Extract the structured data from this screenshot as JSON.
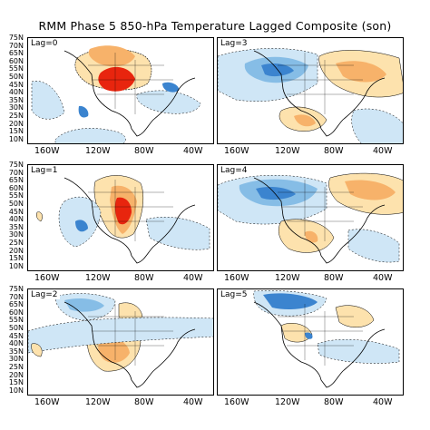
{
  "title": "RMM Phase 5 850-hPa Temperature Lagged Composite (son)",
  "lat_labels": [
    "75N",
    "70N",
    "65N",
    "60N",
    "55N",
    "50N",
    "45N",
    "40N",
    "35N",
    "30N",
    "25N",
    "20N",
    "15N",
    "10N"
  ],
  "lon_labels": [
    "160W",
    "120W",
    "80W",
    "40W"
  ],
  "colors": {
    "strong_warm": "#e8250e",
    "warm": "#f7b26a",
    "light_warm": "#fde2ad",
    "light_cool": "#cfe6f6",
    "cool": "#86bde6",
    "strong_cool": "#3b84cf",
    "land_line": "#000000",
    "contour": "#000000"
  },
  "panels": [
    {
      "id": "lag0",
      "label": "Lag=0"
    },
    {
      "id": "lag3",
      "label": "Lag=3"
    },
    {
      "id": "lag1",
      "label": "Lag=1"
    },
    {
      "id": "lag4",
      "label": "Lag=4"
    },
    {
      "id": "lag2",
      "label": "Lag=2"
    },
    {
      "id": "lag5",
      "label": "Lag=5"
    }
  ]
}
